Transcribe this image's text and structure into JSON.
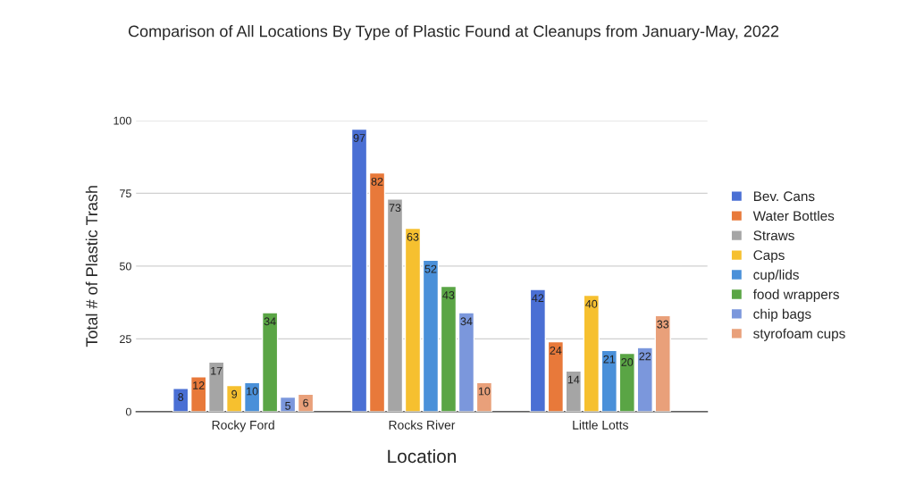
{
  "chart_data": {
    "type": "bar",
    "title": "Comparison of All Locations By Type of Plastic Found at Cleanups from January-May, 2022",
    "xlabel": "Location",
    "ylabel": "Total # of Plastic Trash",
    "categories": [
      "Rocky Ford",
      "Rocks River",
      "Little Lotts"
    ],
    "series": [
      {
        "name": "Bev. Cans",
        "color": "#4a6fd4",
        "values": [
          8,
          97,
          42
        ]
      },
      {
        "name": "Water Bottles",
        "color": "#e8793a",
        "values": [
          12,
          82,
          24
        ]
      },
      {
        "name": "Straws",
        "color": "#a5a5a5",
        "values": [
          17,
          73,
          14
        ]
      },
      {
        "name": "Caps",
        "color": "#f6c02f",
        "values": [
          9,
          63,
          40
        ]
      },
      {
        "name": "cup/lids",
        "color": "#4a90d9",
        "values": [
          10,
          52,
          21
        ]
      },
      {
        "name": "food wrappers",
        "color": "#5aa545",
        "values": [
          34,
          43,
          20
        ]
      },
      {
        "name": "chip bags",
        "color": "#7b97dc",
        "values": [
          5,
          34,
          22
        ]
      },
      {
        "name": "styrofoam cups",
        "color": "#e9a07a",
        "values": [
          6,
          10,
          33
        ]
      }
    ],
    "ylim": [
      0,
      100
    ],
    "yticks": [
      0,
      25,
      50,
      75,
      100
    ],
    "grid": "y",
    "legend": "right",
    "data_labels": true
  }
}
